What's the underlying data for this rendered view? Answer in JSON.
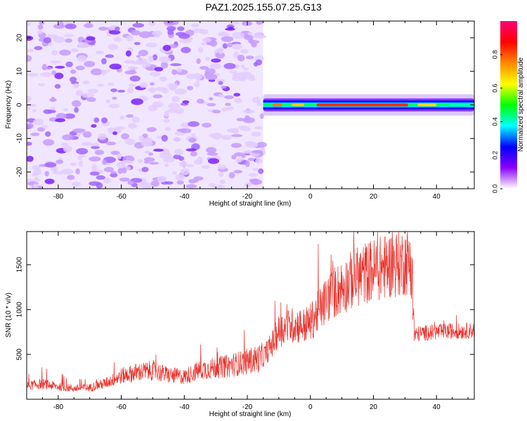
{
  "title": "PAZ1.2025.155.07.25.G13",
  "chart_data": [
    {
      "type": "heatmap",
      "title": "PAZ1.2025.155.07.25.G13",
      "xlabel": "Height of straight line (km)",
      "ylabel": "Frequency (Hz)",
      "xlim": [
        -90,
        52
      ],
      "ylim": [
        -25,
        25
      ],
      "xticks": [
        -80,
        -60,
        -40,
        -20,
        0,
        20,
        40
      ],
      "yticks": [
        -20,
        -10,
        0,
        10,
        20
      ],
      "grid": false,
      "noise_region_x": [
        -90,
        -15
      ],
      "signal_band": {
        "x": [
          -15,
          52
        ],
        "freq_center": 0,
        "freq_halfwidth": 2
      },
      "colorbar": {
        "label": "Normalized spectral amplitude",
        "range": [
          0.0,
          1.0
        ],
        "ticks": [
          "0.0",
          "0.2",
          "0.4",
          "0.6",
          "0.8"
        ],
        "colors": [
          "#ffffff",
          "#8b00ff",
          "#0000ff",
          "#00ffff",
          "#00ff00",
          "#ffff00",
          "#ff8800",
          "#ff0000",
          "#ff0077"
        ]
      }
    },
    {
      "type": "line",
      "xlabel": "Height of straight line (km)",
      "ylabel": "SNR (10 * v/v)",
      "xlim": [
        -90,
        52
      ],
      "ylim": [
        0,
        1870
      ],
      "xticks": [
        -80,
        -60,
        -40,
        -20,
        0,
        20,
        40
      ],
      "yticks": [
        500,
        1000,
        1500
      ],
      "grid": false,
      "line_color": "#e8302a",
      "series": [
        {
          "x": [
            -90,
            -85,
            -80,
            -75,
            -70,
            -65,
            -60,
            -55,
            -50,
            -45,
            -40,
            -35,
            -30,
            -25,
            -20,
            -15,
            -12,
            -10,
            -8,
            -5,
            -2,
            0,
            3,
            6,
            10,
            14,
            18,
            22,
            26,
            30,
            32,
            33,
            36,
            40,
            44,
            48,
            52
          ],
          "values": [
            150,
            170,
            140,
            120,
            130,
            180,
            260,
            300,
            320,
            270,
            250,
            330,
            350,
            380,
            420,
            470,
            620,
            760,
            800,
            830,
            820,
            860,
            1000,
            1150,
            1250,
            1350,
            1420,
            1460,
            1500,
            1530,
            1540,
            720,
            740,
            750,
            760,
            760,
            770
          ]
        }
      ]
    }
  ]
}
